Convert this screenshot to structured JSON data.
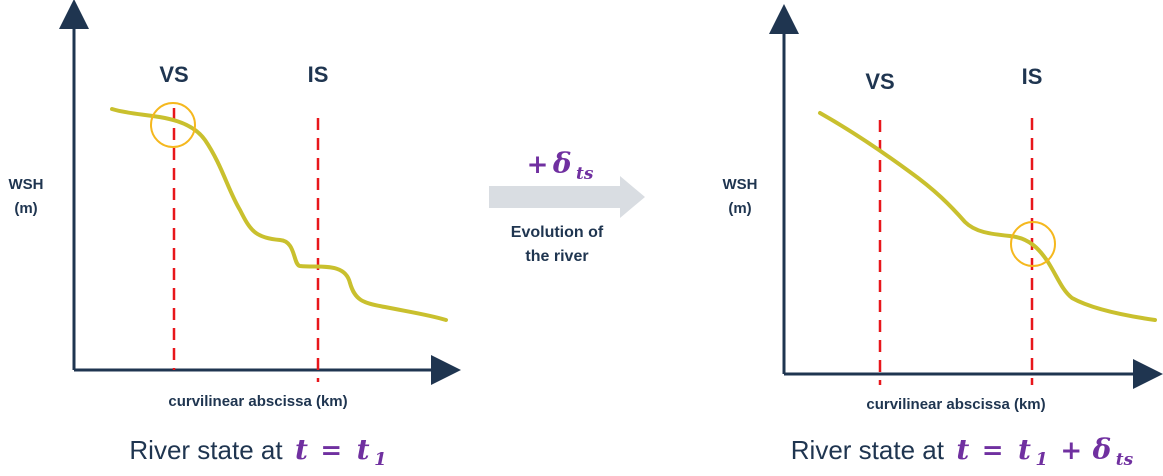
{
  "left": {
    "vs_label": "VS",
    "is_label": "IS",
    "y_axis_label_line1": "WSH",
    "y_axis_label_line2": "(m)",
    "x_axis_label": "curvilinear abscissa (km)",
    "caption_text": "River state at",
    "caption_t": "t",
    "caption_eq": "=",
    "caption_t1": "t",
    "caption_t1_sub": "1"
  },
  "right": {
    "vs_label": "VS",
    "is_label": "IS",
    "y_axis_label_line1": "WSH",
    "y_axis_label_line2": "(m)",
    "x_axis_label": "curvilinear abscissa (km)",
    "caption_text": "River state at",
    "caption_t": "t",
    "caption_eq": "=",
    "caption_t1": "t",
    "caption_t1_sub": "1",
    "caption_plus": "+",
    "caption_delta": "δ",
    "caption_delta_sub": "ts"
  },
  "middle": {
    "delta_plus": "+",
    "delta_symbol": "δ",
    "delta_sub": "ts",
    "arrow_label_line1": "Evolution of",
    "arrow_label_line2": "the river"
  },
  "colors": {
    "axis": "#1f3550",
    "curve": "#c9c02e",
    "dashed": "#e8161b",
    "circle": "#f5b81e",
    "arrow": "#d9dde2",
    "accent": "#7030a0"
  }
}
